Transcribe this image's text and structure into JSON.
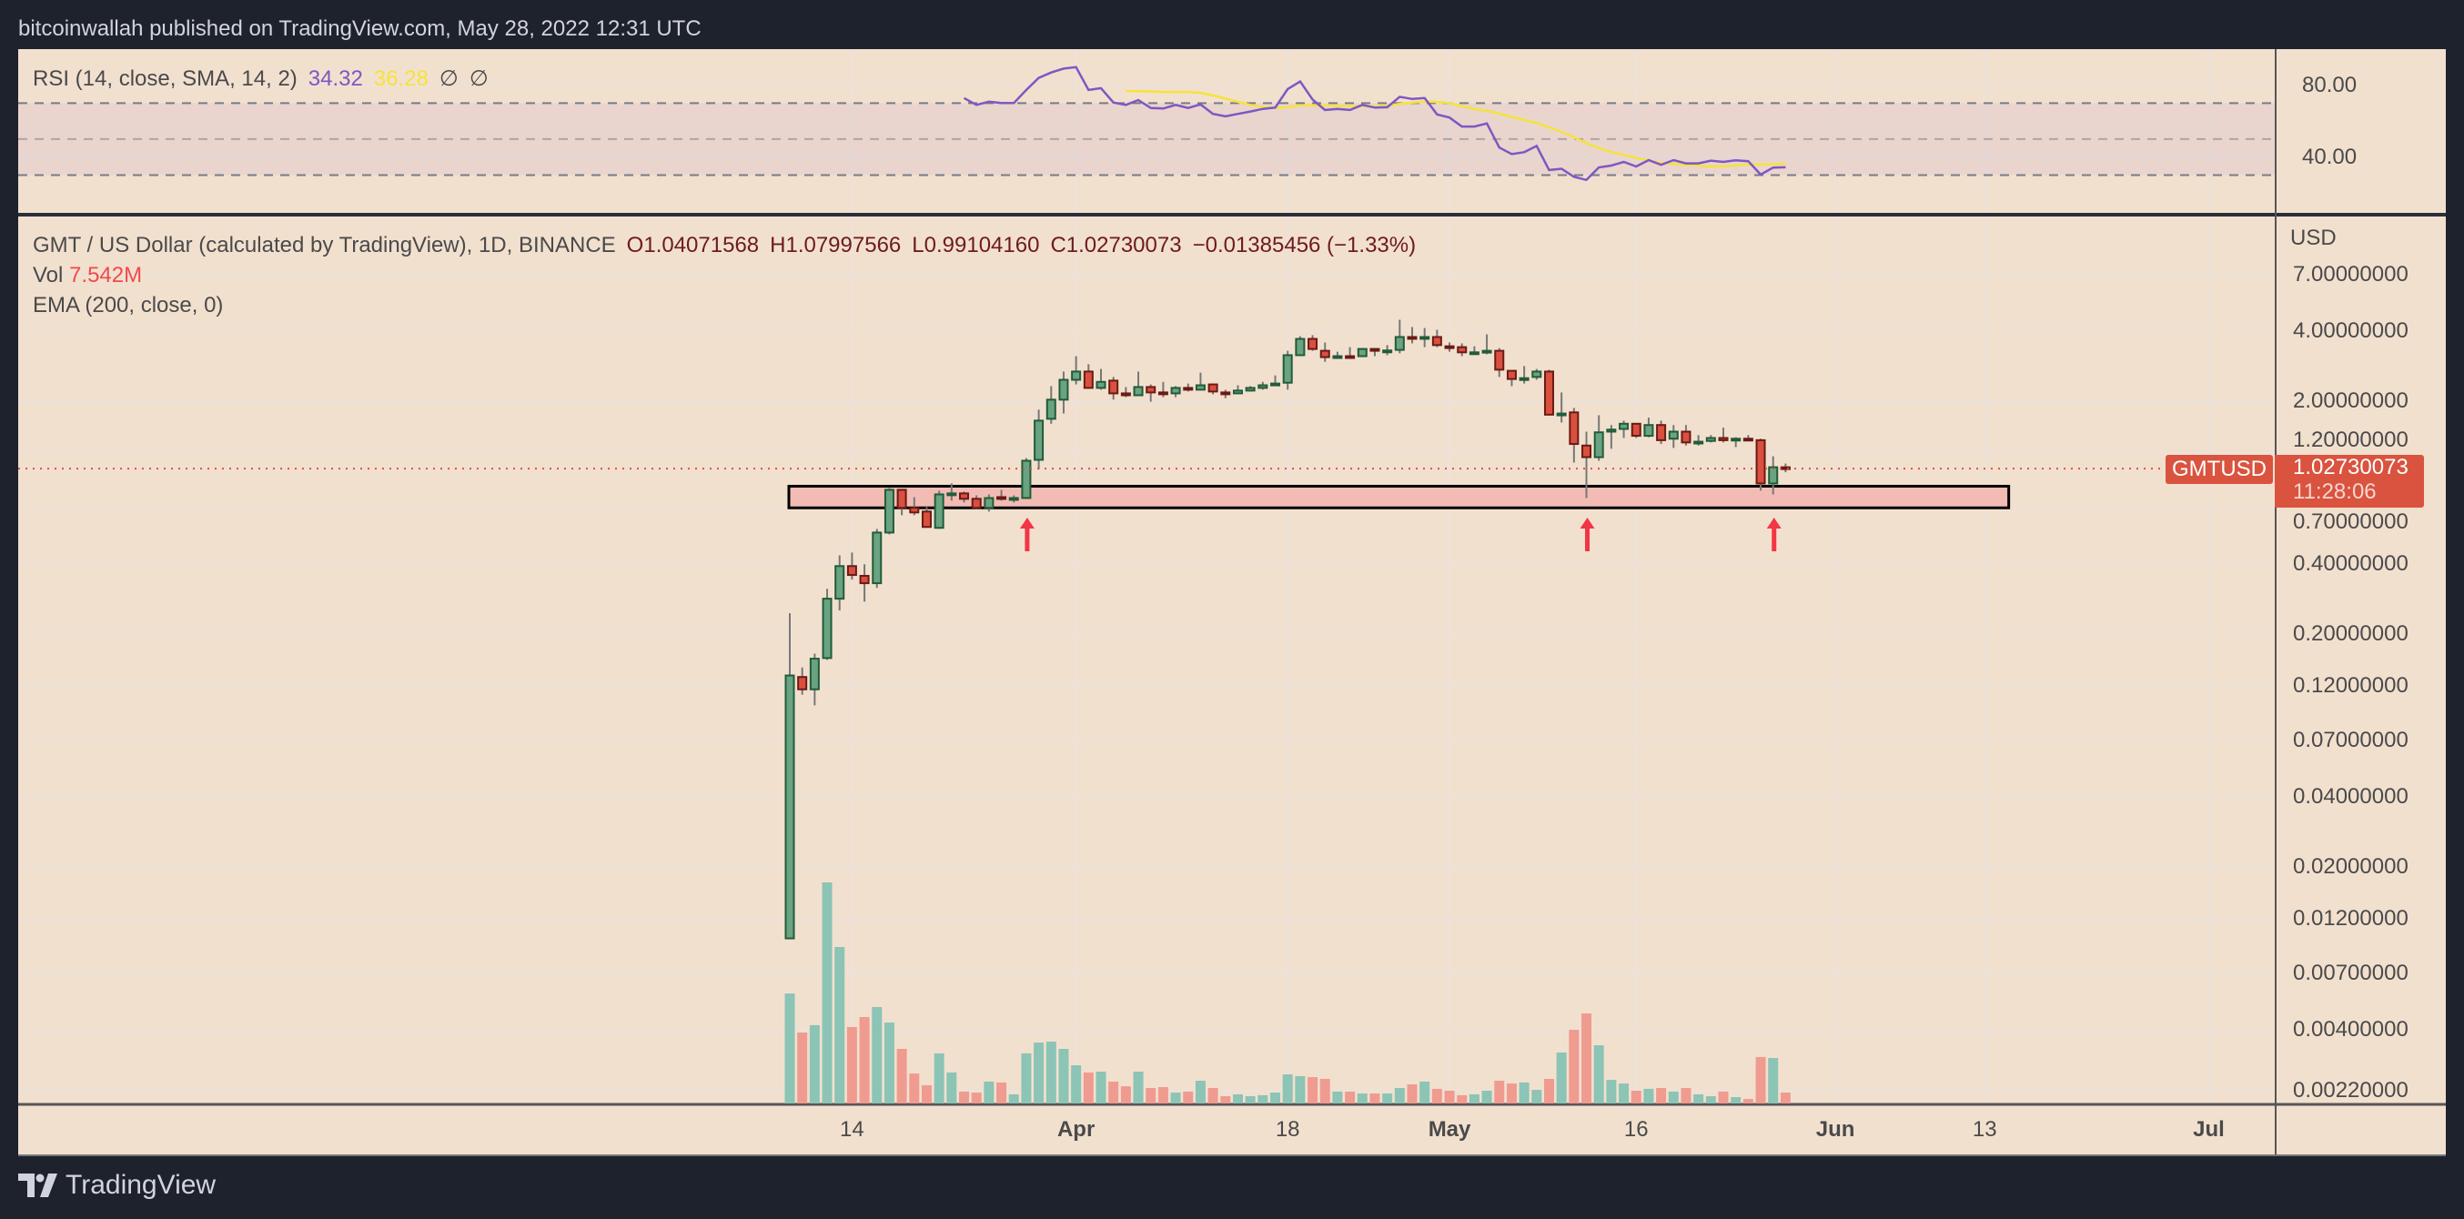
{
  "header": {
    "published": "bitcoinwallah published on TradingView.com, May 28, 2022 12:31 UTC"
  },
  "colors": {
    "background": "#f2e0cf",
    "frame": "#1e222d",
    "up": "#6aa381",
    "up_border": "#215c38",
    "down": "#d9503f",
    "down_border": "#6b1a14",
    "vol_up": "#8cc4b5",
    "vol_down": "#f09b90",
    "rsi": "#7e57c2",
    "rsi_sma": "#f5e33b",
    "zone": "#f2bcb5",
    "arrow": "#f23645",
    "last_price": "#d9533f"
  },
  "rsi_legend": {
    "label": "RSI (14, close, SMA, 14, 2)",
    "rsi_value": "34.32",
    "sma_value": "36.28",
    "extra1": "∅",
    "extra2": "∅"
  },
  "main_legend": {
    "symbol": "GMT / US Dollar (calculated by TradingView), 1D, BINANCE",
    "open": "O1.04071568",
    "high": "H1.07997566",
    "low": "L0.99104160",
    "close": "C1.02730073",
    "change": "−0.01385456 (−1.33%)"
  },
  "vol_legend": {
    "label": "Vol",
    "value": "7.542M"
  },
  "ema_legend": {
    "label": "EMA (200, close, 0)"
  },
  "price_axis": {
    "currency": "USD",
    "ticks": [
      {
        "value": 7,
        "label": "7.00000000"
      },
      {
        "value": 4,
        "label": "4.00000000"
      },
      {
        "value": 2,
        "label": "2.00000000"
      },
      {
        "value": 1.2,
        "label": "1.20000000"
      },
      {
        "value": 0.7,
        "label": "0.70000000"
      },
      {
        "value": 0.4,
        "label": "0.40000000"
      },
      {
        "value": 0.2,
        "label": "0.20000000"
      },
      {
        "value": 0.12,
        "label": "0.12000000"
      },
      {
        "value": 0.07,
        "label": "0.07000000"
      },
      {
        "value": 0.04,
        "label": "0.04000000"
      },
      {
        "value": 0.02,
        "label": "0.02000000"
      },
      {
        "value": 0.012,
        "label": "0.01200000"
      },
      {
        "value": 0.007,
        "label": "0.00700000"
      },
      {
        "value": 0.004,
        "label": "0.00400000"
      },
      {
        "value": 0.0022,
        "label": "0.00220000"
      }
    ],
    "symbol_tag": "GMTUSD",
    "last_price": "1.02730073",
    "countdown": "11:28:06"
  },
  "rsi_axis": {
    "ticks": [
      {
        "value": 80,
        "label": "80.00"
      },
      {
        "value": 40,
        "label": "40.00"
      }
    ],
    "levels": [
      70,
      50,
      30
    ]
  },
  "time_axis": {
    "ticks": [
      {
        "date": "2022-03-14",
        "label": "14",
        "bold": false
      },
      {
        "date": "2022-04-01",
        "label": "Apr",
        "bold": true
      },
      {
        "date": "2022-04-18",
        "label": "18",
        "bold": false
      },
      {
        "date": "2022-05-01",
        "label": "May",
        "bold": true
      },
      {
        "date": "2022-05-16",
        "label": "16",
        "bold": false
      },
      {
        "date": "2022-06-01",
        "label": "Jun",
        "bold": true
      },
      {
        "date": "2022-06-13",
        "label": "13",
        "bold": false
      },
      {
        "date": "2022-07-01",
        "label": "Jul",
        "bold": true
      }
    ]
  },
  "footer": {
    "brand": "TradingView"
  },
  "chart_data": {
    "type": "candlestick",
    "symbol": "GMTUSD",
    "interval": "1D",
    "y_scale": "log",
    "ylim": [
      0.00192,
      12.4
    ],
    "rsi_ylim": [
      9,
      100
    ],
    "grid": true,
    "last_price": 1.02730073,
    "dates": [
      "2022-03-09",
      "2022-03-10",
      "2022-03-11",
      "2022-03-12",
      "2022-03-13",
      "2022-03-14",
      "2022-03-15",
      "2022-03-16",
      "2022-03-17",
      "2022-03-18",
      "2022-03-19",
      "2022-03-20",
      "2022-03-21",
      "2022-03-22",
      "2022-03-23",
      "2022-03-24",
      "2022-03-25",
      "2022-03-26",
      "2022-03-27",
      "2022-03-28",
      "2022-03-29",
      "2022-03-30",
      "2022-03-31",
      "2022-04-01",
      "2022-04-02",
      "2022-04-03",
      "2022-04-04",
      "2022-04-05",
      "2022-04-06",
      "2022-04-07",
      "2022-04-08",
      "2022-04-09",
      "2022-04-10",
      "2022-04-11",
      "2022-04-12",
      "2022-04-13",
      "2022-04-14",
      "2022-04-15",
      "2022-04-16",
      "2022-04-17",
      "2022-04-18",
      "2022-04-19",
      "2022-04-20",
      "2022-04-21",
      "2022-04-22",
      "2022-04-23",
      "2022-04-24",
      "2022-04-25",
      "2022-04-26",
      "2022-04-27",
      "2022-04-28",
      "2022-04-29",
      "2022-04-30",
      "2022-05-01",
      "2022-05-02",
      "2022-05-03",
      "2022-05-04",
      "2022-05-05",
      "2022-05-06",
      "2022-05-07",
      "2022-05-08",
      "2022-05-09",
      "2022-05-10",
      "2022-05-11",
      "2022-05-12",
      "2022-05-13",
      "2022-05-14",
      "2022-05-15",
      "2022-05-16",
      "2022-05-17",
      "2022-05-18",
      "2022-05-19",
      "2022-05-20",
      "2022-05-21",
      "2022-05-22",
      "2022-05-23",
      "2022-05-24",
      "2022-05-25",
      "2022-05-26",
      "2022-05-27",
      "2022-05-28"
    ],
    "ohlc": [
      [
        0.0099,
        0.246,
        0.0099,
        0.133
      ],
      [
        0.131,
        0.144,
        0.11,
        0.116
      ],
      [
        0.116,
        0.165,
        0.099,
        0.157
      ],
      [
        0.158,
        0.313,
        0.155,
        0.284
      ],
      [
        0.284,
        0.436,
        0.253,
        0.392
      ],
      [
        0.392,
        0.448,
        0.343,
        0.359
      ],
      [
        0.356,
        0.399,
        0.276,
        0.331
      ],
      [
        0.331,
        0.566,
        0.316,
        0.546
      ],
      [
        0.546,
        0.848,
        0.536,
        0.833
      ],
      [
        0.833,
        0.84,
        0.648,
        0.697
      ],
      [
        0.697,
        0.775,
        0.648,
        0.666
      ],
      [
        0.672,
        0.703,
        0.577,
        0.577
      ],
      [
        0.572,
        0.826,
        0.566,
        0.796
      ],
      [
        0.796,
        0.887,
        0.749,
        0.804
      ],
      [
        0.804,
        0.818,
        0.735,
        0.762
      ],
      [
        0.762,
        0.789,
        0.69,
        0.697
      ],
      [
        0.697,
        0.796,
        0.672,
        0.768
      ],
      [
        0.775,
        0.833,
        0.749,
        0.762
      ],
      [
        0.762,
        0.789,
        0.735,
        0.768
      ],
      [
        0.768,
        1.14,
        0.768,
        1.11
      ],
      [
        1.12,
        1.84,
        1.02,
        1.65
      ],
      [
        1.68,
        2.32,
        1.6,
        2.03
      ],
      [
        2.03,
        2.68,
        1.77,
        2.47
      ],
      [
        2.47,
        3.12,
        2.36,
        2.68
      ],
      [
        2.68,
        2.88,
        2.26,
        2.28
      ],
      [
        2.28,
        2.75,
        2.24,
        2.42
      ],
      [
        2.45,
        2.54,
        2.03,
        2.16
      ],
      [
        2.16,
        2.3,
        2.08,
        2.12
      ],
      [
        2.12,
        2.68,
        2.12,
        2.3
      ],
      [
        2.3,
        2.36,
        1.99,
        2.18
      ],
      [
        2.18,
        2.42,
        2.08,
        2.16
      ],
      [
        2.16,
        2.32,
        2.08,
        2.28
      ],
      [
        2.28,
        2.38,
        2.2,
        2.24
      ],
      [
        2.24,
        2.65,
        2.24,
        2.34
      ],
      [
        2.36,
        2.38,
        2.14,
        2.2
      ],
      [
        2.18,
        2.24,
        2.06,
        2.16
      ],
      [
        2.16,
        2.34,
        2.16,
        2.22
      ],
      [
        2.22,
        2.32,
        2.2,
        2.28
      ],
      [
        2.28,
        2.42,
        2.24,
        2.34
      ],
      [
        2.36,
        2.58,
        2.36,
        2.38
      ],
      [
        2.4,
        3.29,
        2.24,
        3.15
      ],
      [
        3.15,
        3.8,
        3.12,
        3.7
      ],
      [
        3.7,
        3.84,
        3.29,
        3.35
      ],
      [
        3.29,
        3.57,
        2.95,
        3.09
      ],
      [
        3.09,
        3.26,
        3.06,
        3.12
      ],
      [
        3.12,
        3.41,
        3.09,
        3.11
      ],
      [
        3.12,
        3.38,
        3.09,
        3.35
      ],
      [
        3.35,
        3.38,
        3.12,
        3.29
      ],
      [
        3.29,
        3.48,
        3.15,
        3.3
      ],
      [
        3.32,
        4.47,
        3.21,
        3.77
      ],
      [
        3.77,
        4.16,
        3.54,
        3.73
      ],
      [
        3.73,
        4.12,
        3.41,
        3.77
      ],
      [
        3.77,
        4.05,
        3.41,
        3.48
      ],
      [
        3.44,
        3.57,
        3.26,
        3.41
      ],
      [
        3.41,
        3.54,
        3.12,
        3.24
      ],
      [
        3.21,
        3.44,
        3.18,
        3.24
      ],
      [
        3.24,
        3.87,
        3.18,
        3.29
      ],
      [
        3.29,
        3.38,
        2.54,
        2.73
      ],
      [
        2.7,
        2.7,
        2.32,
        2.49
      ],
      [
        2.49,
        2.83,
        2.38,
        2.51
      ],
      [
        2.54,
        2.75,
        2.47,
        2.68
      ],
      [
        2.68,
        2.73,
        1.75,
        1.75
      ],
      [
        1.75,
        2.18,
        1.62,
        1.77
      ],
      [
        1.79,
        1.87,
        1.09,
        1.31
      ],
      [
        1.29,
        1.48,
        0.768,
        1.15
      ],
      [
        1.15,
        1.74,
        1.11,
        1.47
      ],
      [
        1.48,
        1.58,
        1.25,
        1.51
      ],
      [
        1.52,
        1.65,
        1.39,
        1.6
      ],
      [
        1.6,
        1.6,
        1.39,
        1.42
      ],
      [
        1.42,
        1.7,
        1.4,
        1.58
      ],
      [
        1.58,
        1.65,
        1.31,
        1.36
      ],
      [
        1.38,
        1.58,
        1.26,
        1.48
      ],
      [
        1.48,
        1.58,
        1.29,
        1.33
      ],
      [
        1.33,
        1.43,
        1.29,
        1.34
      ],
      [
        1.35,
        1.43,
        1.33,
        1.39
      ],
      [
        1.39,
        1.54,
        1.33,
        1.36
      ],
      [
        1.37,
        1.4,
        1.27,
        1.38
      ],
      [
        1.38,
        1.43,
        1.35,
        1.36
      ],
      [
        1.36,
        1.38,
        0.826,
        0.887
      ],
      [
        0.887,
        1.16,
        0.796,
        1.041
      ],
      [
        1.04071568,
        1.07997566,
        0.9910416,
        1.02730073
      ]
    ],
    "volume_millions": [
      76.0,
      49.0,
      54.1,
      152.7,
      108.1,
      52.8,
      59.7,
      66.6,
      55.9,
      37.7,
      20.7,
      12.6,
      34.6,
      21.4,
      8.2,
      7.5,
      15.1,
      14.5,
      6.3,
      34.6,
      42.1,
      42.7,
      37.7,
      26.4,
      21.4,
      22.0,
      15.1,
      11.9,
      22.0,
      10.7,
      11.3,
      7.5,
      8.2,
      15.7,
      10.7,
      5.0,
      6.3,
      5.0,
      5.7,
      7.5,
      20.1,
      18.9,
      18.2,
      17.0,
      8.2,
      8.2,
      6.9,
      6.9,
      6.9,
      10.7,
      13.2,
      15.1,
      10.1,
      8.8,
      5.7,
      6.3,
      8.8,
      15.7,
      13.8,
      14.5,
      9.4,
      17.0,
      35.2,
      50.9,
      62.2,
      40.2,
      16.3,
      13.8,
      8.8,
      10.1,
      10.7,
      8.2,
      10.7,
      6.3,
      5.0,
      8.2,
      4.4,
      3.1,
      32.1,
      31.4,
      7.542
    ],
    "rsi": [
      null,
      null,
      null,
      null,
      null,
      null,
      null,
      null,
      null,
      null,
      null,
      null,
      null,
      null,
      72.8,
      69.0,
      70.8,
      70.0,
      70.0,
      77.3,
      84.0,
      87.0,
      89.2,
      90.0,
      77.3,
      78.3,
      70.3,
      69.0,
      71.7,
      67.3,
      67.0,
      69.0,
      67.3,
      69.3,
      64.0,
      62.7,
      64.0,
      65.3,
      66.8,
      67.5,
      77.8,
      82.0,
      72.0,
      66.2,
      66.8,
      66.2,
      69.0,
      67.5,
      67.7,
      73.5,
      72.3,
      72.8,
      63.7,
      62.0,
      57.0,
      57.0,
      58.7,
      45.3,
      41.7,
      42.7,
      46.2,
      32.8,
      33.5,
      29.0,
      27.3,
      34.3,
      35.3,
      37.3,
      34.8,
      38.3,
      35.7,
      38.3,
      36.5,
      36.5,
      38.0,
      37.3,
      38.2,
      37.7,
      30.3,
      34.2,
      34.32
    ],
    "rsi_sma": [
      null,
      null,
      null,
      null,
      null,
      null,
      null,
      null,
      null,
      null,
      null,
      null,
      null,
      null,
      null,
      null,
      null,
      null,
      null,
      null,
      null,
      null,
      null,
      null,
      null,
      null,
      null,
      76.7,
      76.7,
      76.5,
      76.2,
      76.2,
      76.2,
      75.7,
      74.2,
      72.5,
      70.7,
      69.0,
      67.8,
      67.3,
      67.7,
      68.7,
      68.7,
      68.7,
      68.5,
      68.3,
      68.3,
      68.2,
      68.5,
      69.5,
      70.3,
      70.8,
      70.7,
      70.0,
      68.3,
      66.7,
      65.7,
      64.2,
      62.3,
      60.7,
      59.0,
      56.5,
      54.0,
      51.0,
      47.7,
      45.0,
      42.8,
      41.2,
      39.5,
      38.2,
      36.7,
      36.2,
      35.7,
      35.3,
      34.8,
      35.0,
      35.3,
      35.8,
      36.0,
      36.0,
      36.28
    ],
    "support_zone": {
      "from": "2022-03-09",
      "to": "2022-06-15",
      "low": 0.697,
      "high": 0.863
    },
    "arrows": [
      "2022-03-28",
      "2022-05-12",
      "2022-05-27"
    ]
  }
}
